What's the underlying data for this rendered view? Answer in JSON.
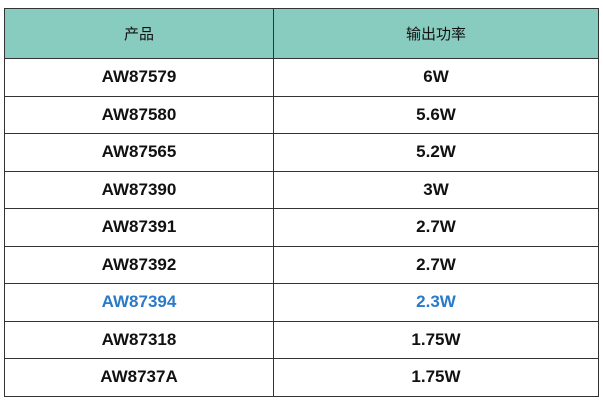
{
  "table": {
    "headers": [
      "产品",
      "输出功率"
    ],
    "rows": [
      {
        "product": "AW87579",
        "power": "6W"
      },
      {
        "product": "AW87580",
        "power": "5.6W"
      },
      {
        "product": "AW87565",
        "power": "5.2W"
      },
      {
        "product": "AW87390",
        "power": "3W"
      },
      {
        "product": "AW87391",
        "power": "2.7W"
      },
      {
        "product": "AW87392",
        "power": "2.7W"
      },
      {
        "product": "AW87394",
        "power": "2.3W",
        "highlighted": true
      },
      {
        "product": "AW87318",
        "power": "1.75W"
      },
      {
        "product": "AW8737A",
        "power": "1.75W"
      }
    ],
    "colors": {
      "header_bg": "#88cbbf",
      "highlight": "#2a7ac8"
    }
  }
}
